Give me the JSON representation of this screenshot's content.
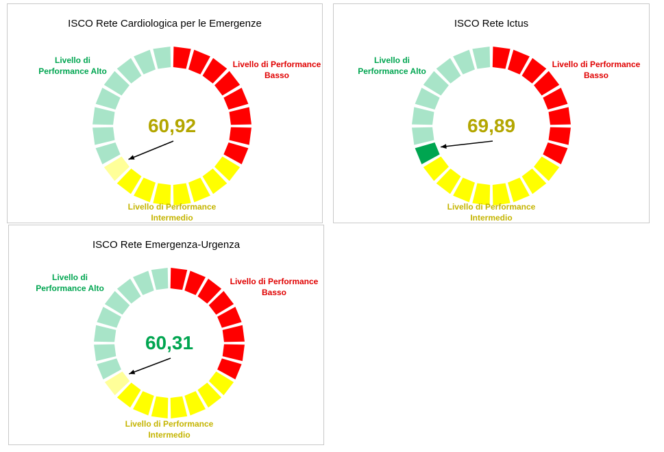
{
  "chart_data": [
    {
      "type": "gauge",
      "title": "ISCO Rete Cardiologica per le Emergenze",
      "values": [
        60.92
      ],
      "value_labels": [
        "60,92"
      ],
      "value_color": "#b3a600",
      "bands": [
        {
          "name": "Livello di Performance Basso",
          "color": "#ff0000",
          "label_color": "#e00000",
          "count": 8
        },
        {
          "name": "Livello di Performance Intermedio",
          "color": "#ffff00",
          "label_color": "#c4b400",
          "count": 8
        },
        {
          "name": "Livello di Performance Alto",
          "color": "#a8e4c8",
          "label_color": "#00a550",
          "count": 8
        }
      ],
      "highlight": {
        "segment": 15,
        "color": "#ffff99"
      }
    },
    {
      "type": "gauge",
      "title": "ISCO Rete Ictus",
      "values": [
        69.89
      ],
      "value_labels": [
        "69,89"
      ],
      "value_color": "#b3a600",
      "bands": [
        {
          "name": "Livello di Performance Basso",
          "color": "#ff0000",
          "label_color": "#e00000",
          "count": 8
        },
        {
          "name": "Livello di Performance Intermedio",
          "color": "#ffff00",
          "label_color": "#c4b400",
          "count": 8
        },
        {
          "name": "Livello di Performance Alto",
          "color": "#a8e4c8",
          "label_color": "#00a550",
          "count": 8
        }
      ],
      "highlight": {
        "segment": 16,
        "color": "#00a550"
      }
    },
    {
      "type": "gauge",
      "title": "ISCO Rete Emergenza-Urgenza",
      "values": [
        60.31
      ],
      "value_labels": [
        "60,31"
      ],
      "value_color": "#00a550",
      "bands": [
        {
          "name": "Livello di Performance Basso",
          "color": "#ff0000",
          "label_color": "#e00000",
          "count": 8
        },
        {
          "name": "Livello di Performance Intermedio",
          "color": "#ffff00",
          "label_color": "#c4b400",
          "count": 8
        },
        {
          "name": "Livello di Performance Alto",
          "color": "#a8e4c8",
          "label_color": "#00a550",
          "count": 8
        }
      ],
      "highlight": {
        "segment": 15,
        "color": "#ffff99"
      }
    }
  ]
}
